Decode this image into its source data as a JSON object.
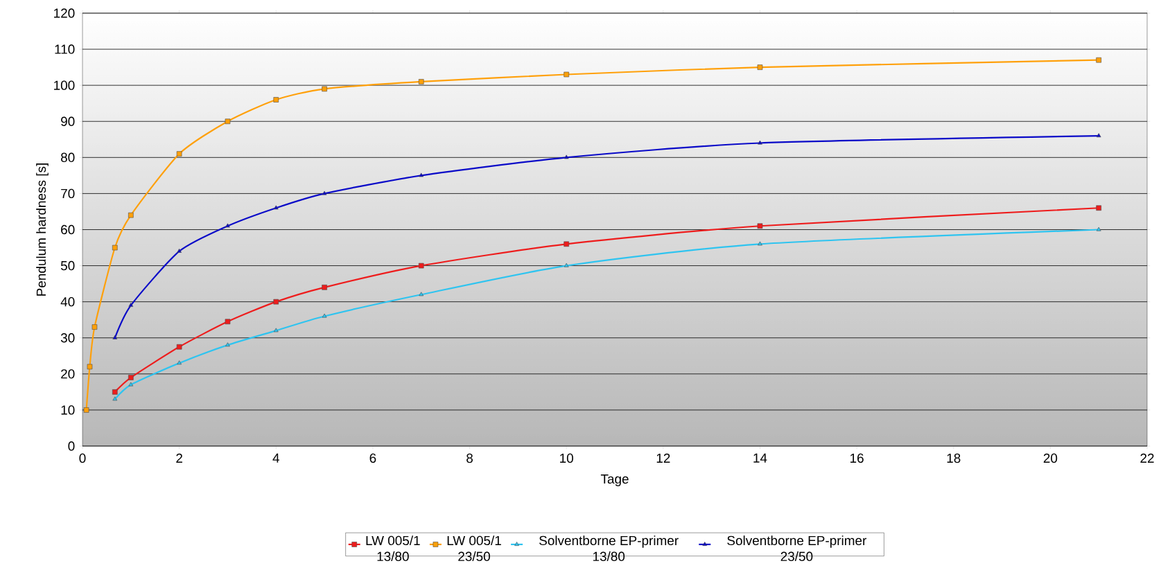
{
  "chart_data": {
    "type": "line",
    "xlabel": "Tage",
    "ylabel": "Pendulum hardness [s]",
    "xlim": [
      0,
      22
    ],
    "xticks": [
      0,
      2,
      4,
      6,
      8,
      10,
      12,
      14,
      16,
      18,
      20,
      22
    ],
    "ylim": [
      0,
      120
    ],
    "yticks": [
      0,
      10,
      20,
      30,
      40,
      50,
      60,
      70,
      80,
      90,
      100,
      110,
      120
    ],
    "grid": "y",
    "legend": "bottom",
    "series": [
      {
        "name": "LW 005/1 13/80",
        "color": "#ee1c1c",
        "marker": "square",
        "x": [
          0.67,
          1,
          2,
          3,
          4,
          5,
          7,
          10,
          14,
          21
        ],
        "values": [
          15,
          19,
          27.5,
          34.5,
          40,
          44,
          50,
          56,
          61,
          66
        ]
      },
      {
        "name": "LW 005/1 23/50",
        "color": "#ffa00a",
        "marker": "square",
        "x": [
          0.08,
          0.15,
          0.25,
          0.67,
          1,
          2,
          3,
          4,
          5,
          7,
          10,
          14,
          21
        ],
        "values": [
          10,
          22,
          33,
          55,
          64,
          81,
          90,
          96,
          99,
          101,
          103,
          105,
          107
        ]
      },
      {
        "name": "Solventborne EP-primer 13/80",
        "color": "#2ec4f0",
        "marker": "triangle",
        "x": [
          0.67,
          1,
          2,
          3,
          4,
          5,
          7,
          10,
          14,
          21
        ],
        "values": [
          13,
          17,
          23,
          28,
          32,
          36,
          42,
          50,
          56,
          60
        ]
      },
      {
        "name": "Solventborne EP-primer 23/50",
        "color": "#0a0ac8",
        "marker": "triangle",
        "x": [
          0.67,
          1,
          2,
          3,
          4,
          5,
          7,
          10,
          14,
          21
        ],
        "values": [
          30,
          39,
          54,
          61,
          66,
          70,
          75,
          80,
          84,
          86
        ]
      }
    ]
  }
}
